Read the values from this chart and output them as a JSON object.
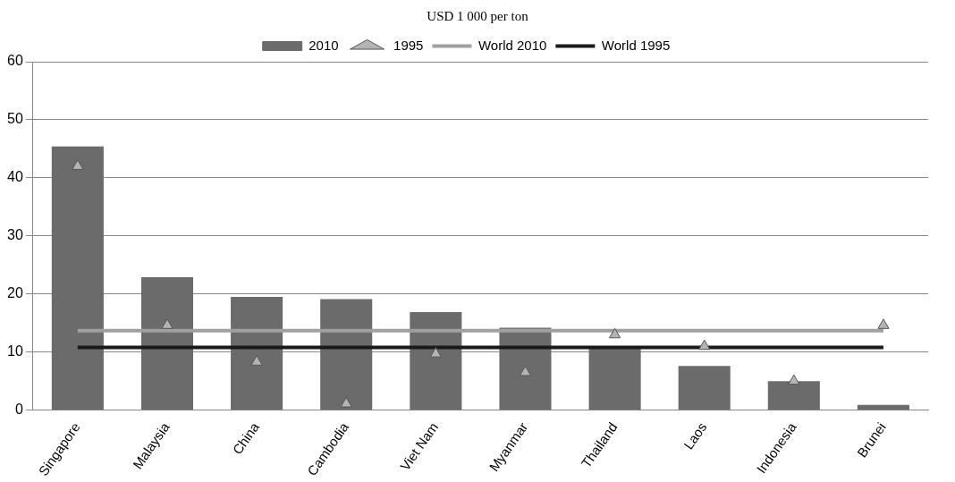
{
  "chart_data": {
    "type": "bar",
    "title": "USD 1 000 per ton",
    "categories": [
      "Singapore",
      "Malaysia",
      "China",
      "Cambodia",
      "Viet Nam",
      "Myanmar",
      "Thailand",
      "Laos",
      "Indonesia",
      "Brunei"
    ],
    "series": [
      {
        "name": "2010",
        "color": "#6b6b6b",
        "values": [
          45.4,
          22.9,
          19.5,
          19.1,
          16.9,
          14.2,
          11,
          7.6,
          5,
          0.9
        ]
      },
      {
        "name": "1995",
        "type": "scatter",
        "marker": "triangle",
        "color": "#b4b4b4",
        "values": [
          42,
          14.6,
          8.3,
          1.1,
          9.7,
          6.5,
          13,
          11,
          5,
          14.6
        ]
      },
      {
        "name": "World 2010",
        "type": "line",
        "color": "#a0a0a0",
        "values": [
          13.7,
          13.7,
          13.7,
          13.7,
          13.7,
          13.7,
          13.7,
          13.7,
          13.7,
          13.7
        ]
      },
      {
        "name": "World 1995",
        "type": "line",
        "color": "#1a1a1a",
        "values": [
          10.8,
          10.8,
          10.8,
          10.8,
          10.8,
          10.8,
          10.8,
          10.8,
          10.8,
          10.8
        ]
      }
    ],
    "ylim": [
      0,
      60
    ],
    "yticks": [
      0,
      10,
      20,
      30,
      40,
      50,
      60
    ],
    "grid": "y",
    "legend": "top"
  }
}
